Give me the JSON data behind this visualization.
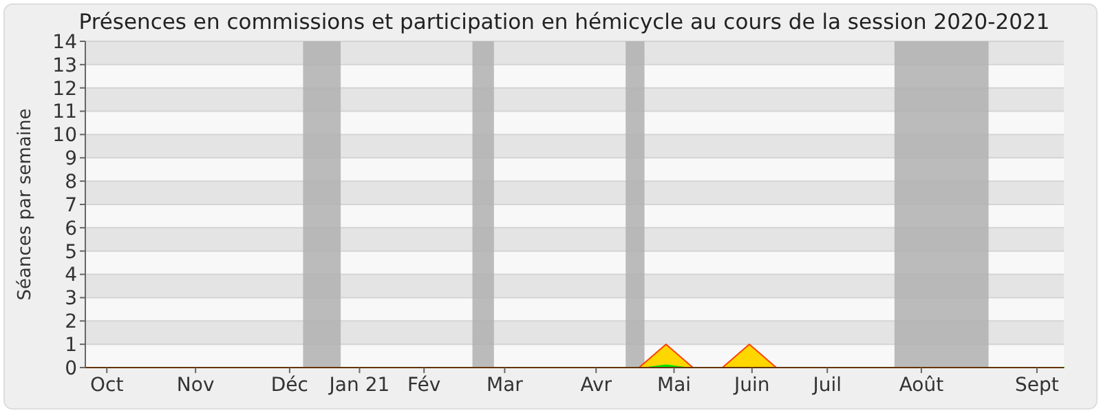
{
  "chart_data": {
    "type": "area",
    "title": "Présences en commissions et participation en hémicycle au cours de la session 2020-2021",
    "ylabel": "Séances par semaine",
    "xlim": [
      "2020-09-28",
      "2021-09-27"
    ],
    "ylim": [
      0,
      14
    ],
    "yticks": [
      0,
      1,
      2,
      3,
      4,
      5,
      6,
      7,
      8,
      9,
      10,
      11,
      12,
      13,
      14
    ],
    "xticks": [
      {
        "value": "2020-10-06",
        "label": "Oct"
      },
      {
        "value": "2020-11-08",
        "label": "Nov"
      },
      {
        "value": "2020-12-13",
        "label": "Déc"
      },
      {
        "value": "2021-01-08",
        "label": "Jan 21"
      },
      {
        "value": "2021-02-01",
        "label": "Fév"
      },
      {
        "value": "2021-03-03",
        "label": "Mar"
      },
      {
        "value": "2021-04-06",
        "label": "Avr"
      },
      {
        "value": "2021-05-05",
        "label": "Mai"
      },
      {
        "value": "2021-06-03",
        "label": "Juin"
      },
      {
        "value": "2021-07-01",
        "label": "Juil"
      },
      {
        "value": "2021-08-05",
        "label": "Août"
      },
      {
        "value": "2021-09-17",
        "label": "Sept"
      }
    ],
    "grid": "y",
    "bands": [
      {
        "axis": "x",
        "from": "2020-12-18",
        "to": "2021-01-01",
        "color": "#b0b0b0"
      },
      {
        "axis": "x",
        "from": "2021-02-19",
        "to": "2021-02-27",
        "color": "#b0b0b0"
      },
      {
        "axis": "x",
        "from": "2021-04-17",
        "to": "2021-04-24",
        "color": "#b0b0b0"
      },
      {
        "axis": "x",
        "from": "2021-07-26",
        "to": "2021-08-30",
        "color": "#b0b0b0"
      }
    ],
    "series": [
      {
        "color": "#ffd700",
        "x": [
          "2020-09-28",
          "2021-04-22",
          "2021-05-02",
          "2021-05-12",
          "2021-05-23",
          "2021-06-02",
          "2021-06-12",
          "2021-09-27"
        ],
        "values": [
          0,
          0,
          1,
          0,
          0,
          1,
          0,
          0
        ]
      },
      {
        "color": "#00e000",
        "x": [
          "2020-09-28",
          "2021-04-25",
          "2021-05-02",
          "2021-05-09",
          "2021-09-27"
        ],
        "values": [
          0,
          0,
          0.1,
          0,
          0
        ]
      }
    ]
  }
}
